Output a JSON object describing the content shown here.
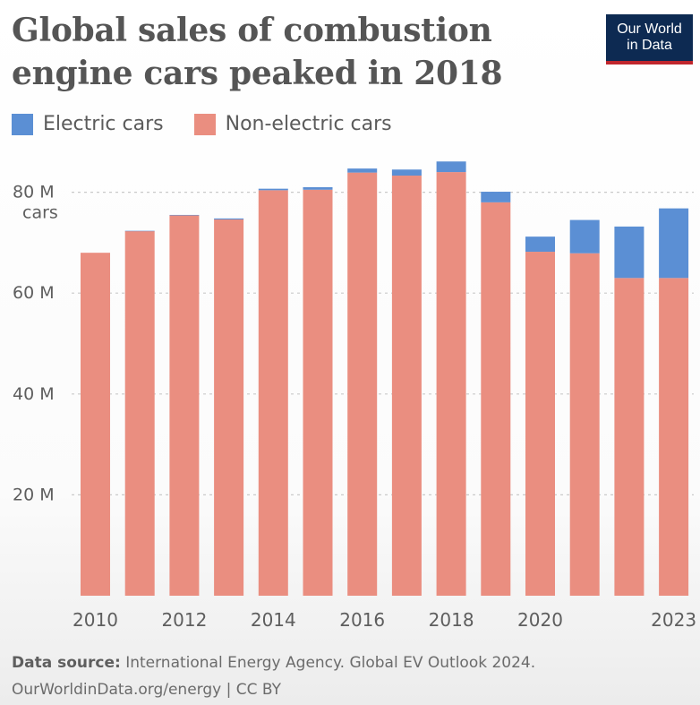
{
  "title_lines": [
    "Global sales of combustion",
    "engine cars peaked in 2018"
  ],
  "logo_lines": [
    "Our World",
    "in Data"
  ],
  "colors": {
    "electric": "#5b8fd4",
    "non_electric": "#ea8e80",
    "logo_bg": "#0d2a52",
    "logo_accent": "#c0262d"
  },
  "chart_data": {
    "type": "bar",
    "stacked": true,
    "title": "Global sales of combustion engine cars peaked in 2018",
    "ylabel": "cars",
    "ylim": [
      0,
      87
    ],
    "y_ticks": [
      {
        "value": 20,
        "label": "20 M"
      },
      {
        "value": 40,
        "label": "40 M"
      },
      {
        "value": 60,
        "label": "60 M"
      },
      {
        "value": 80,
        "label": "80 M"
      }
    ],
    "y_unit_label": "cars",
    "categories": [
      2010,
      2011,
      2012,
      2013,
      2014,
      2015,
      2016,
      2017,
      2018,
      2019,
      2020,
      2021,
      2022,
      2023
    ],
    "x_tick_labels": [
      {
        "category": 2010,
        "label": "2010"
      },
      {
        "category": 2012,
        "label": "2012"
      },
      {
        "category": 2014,
        "label": "2014"
      },
      {
        "category": 2016,
        "label": "2016"
      },
      {
        "category": 2018,
        "label": "2018"
      },
      {
        "category": 2020,
        "label": "2020"
      },
      {
        "category": 2023,
        "label": "2023"
      }
    ],
    "series": [
      {
        "name": "Non-electric cars",
        "color": "#ea8e80",
        "values": [
          68.0,
          72.3,
          75.4,
          74.6,
          80.4,
          80.5,
          83.9,
          83.3,
          84.0,
          78.0,
          68.2,
          67.9,
          63.0,
          63.0
        ]
      },
      {
        "name": "Electric cars",
        "color": "#5b8fd4",
        "values": [
          0.0,
          0.05,
          0.1,
          0.2,
          0.3,
          0.5,
          0.8,
          1.2,
          2.1,
          2.1,
          3.0,
          6.6,
          10.2,
          13.8
        ]
      }
    ],
    "legend": "top-left",
    "grid": {
      "horizontal": true,
      "style": "dotted"
    }
  },
  "footer": {
    "source_label": "Data source:",
    "source_text": " International Energy Agency. Global EV Outlook 2024.",
    "url_line": "OurWorldinData.org/energy | CC BY"
  }
}
